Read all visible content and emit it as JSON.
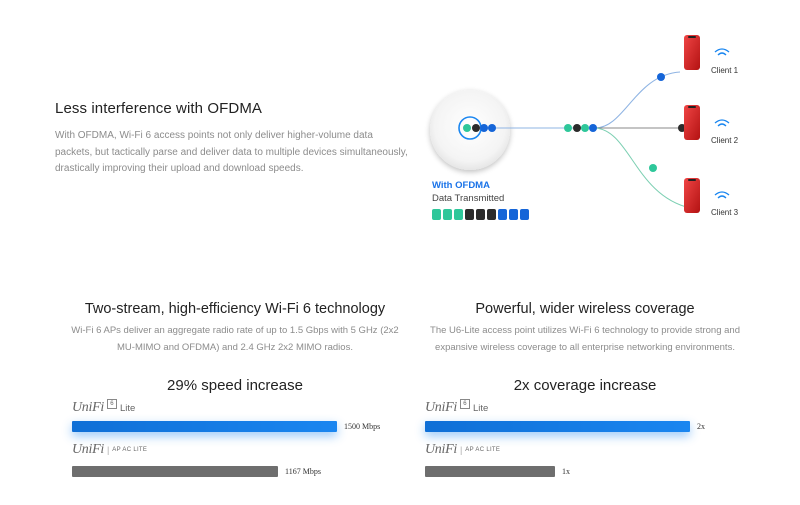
{
  "ofdma": {
    "title": "Less interference with OFDMA",
    "description": "With OFDMA, Wi-Fi 6 access points not only deliver higher-volume data packets, but tactically parse and deliver data to multiple devices simultaneously, drastically improving their upload and download speeds.",
    "legend_title": "With OFDMA",
    "legend_subtitle": "Data Transmitted",
    "clients": [
      "Client 1",
      "Client 2",
      "Client 3"
    ],
    "colors": {
      "blue": "#1565d8",
      "green": "#2ec79a",
      "dark": "#2b2b2b",
      "phone": "#d81e1e"
    }
  },
  "left_column": {
    "title": "Two-stream, high-efficiency Wi-Fi 6 technology",
    "description_line1": "Wi-Fi 6 APs deliver an aggregate radio rate of up to 1.5 Gbps with 5 GHz (2x2",
    "description_line2": "MU-MIMO and OFDMA) and 2.4 GHz 2x2 MIMO radios.",
    "stat": "29% speed increase",
    "bars": [
      {
        "logo": "UniFi",
        "badge": "6",
        "model": "Lite",
        "value_label": "1500 Mbps",
        "fraction": 1.0,
        "color": "#1a7ee6"
      },
      {
        "logo": "UniFi",
        "badge": "",
        "model": "AP AC LITE",
        "value_label": "1167 Mbps",
        "fraction": 0.778,
        "color": "#6e6e6e"
      }
    ]
  },
  "right_column": {
    "title": "Powerful, wider wireless coverage",
    "description_line1": "The U6-Lite access point utilizes Wi-Fi 6 technology to provide strong and",
    "description_line2": "expansive wireless coverage to all enterprise networking environments.",
    "stat": "2x coverage increase",
    "bars": [
      {
        "logo": "UniFi",
        "badge": "6",
        "model": "Lite",
        "value_label": "2x",
        "fraction": 1.0,
        "color": "#1a7ee6"
      },
      {
        "logo": "UniFi",
        "badge": "",
        "model": "AP AC LITE",
        "value_label": "1x",
        "fraction": 0.5,
        "color": "#6e6e6e"
      }
    ]
  }
}
